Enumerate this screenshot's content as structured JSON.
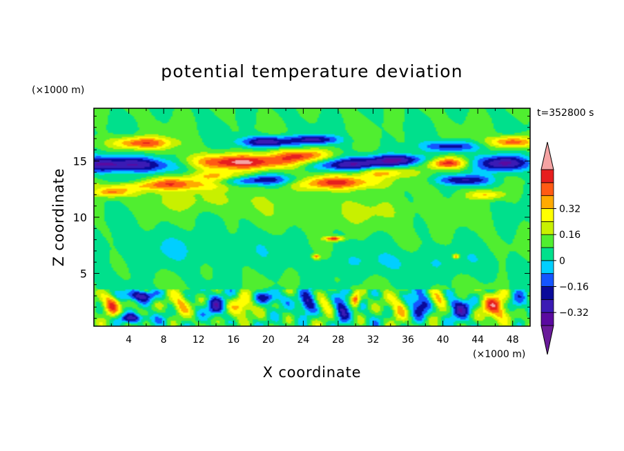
{
  "chart_data": {
    "type": "heatmap",
    "title": "potential temperature deviation",
    "xlabel": "X coordinate",
    "ylabel": "Z coordinate",
    "x_unit": "(×1000 m)",
    "y_unit": "(×1000 m)",
    "time_label": "t=352800 s",
    "xlim": [
      0,
      50
    ],
    "ylim": [
      0.3,
      19.7
    ],
    "x_ticks": [
      4,
      8,
      12,
      16,
      20,
      24,
      28,
      32,
      36,
      40,
      44,
      48
    ],
    "y_ticks": [
      5,
      10,
      15
    ],
    "colorbar": {
      "levels": [
        -0.48,
        -0.4,
        -0.32,
        -0.24,
        -0.16,
        -0.08,
        0,
        0.08,
        0.16,
        0.24,
        0.32,
        0.4,
        0.48
      ],
      "tick_values": [
        -0.32,
        -0.16,
        0,
        0.16,
        0.32
      ],
      "tick_labels": [
        "−0.32",
        "−0.16",
        "0",
        "0.16",
        "0.32"
      ],
      "colors": [
        "#5a0aa0",
        "#3b1bb4",
        "#0a0a9a",
        "#1455ff",
        "#00cfff",
        "#00e08c",
        "#50ee30",
        "#c8f000",
        "#ffff00",
        "#ffaa00",
        "#ff5a14",
        "#e61e1e"
      ],
      "under_color": "#6a1b9a",
      "over_color": "#f5a3a3"
    },
    "features": [
      {
        "x": 3,
        "z": 14.7,
        "sx": 7,
        "sz": 0.7,
        "value": -0.45
      },
      {
        "x": 5.5,
        "z": 16.6,
        "sx": 3.5,
        "sz": 0.55,
        "value": 0.4
      },
      {
        "x": 4,
        "z": 13.2,
        "sx": 3,
        "sz": 0.45,
        "value": -0.32
      },
      {
        "x": 8,
        "z": 13.0,
        "sx": 7,
        "sz": 0.6,
        "value": 0.45
      },
      {
        "x": 2,
        "z": 12.2,
        "sx": 2,
        "sz": 0.4,
        "value": 0.3
      },
      {
        "x": 17,
        "z": 14.9,
        "sx": 7,
        "sz": 0.7,
        "value": 0.5
      },
      {
        "x": 14.5,
        "z": 13.6,
        "sx": 3.5,
        "sz": 0.45,
        "value": 0.3
      },
      {
        "x": 18,
        "z": 13.3,
        "sx": 6.5,
        "sz": 0.5,
        "value": -0.36
      },
      {
        "x": 20,
        "z": 16.7,
        "sx": 3.2,
        "sz": 0.5,
        "value": -0.4
      },
      {
        "x": 25.5,
        "z": 16.9,
        "sx": 2.5,
        "sz": 0.4,
        "value": -0.32
      },
      {
        "x": 24,
        "z": 15.5,
        "sx": 3,
        "sz": 0.6,
        "value": 0.35
      },
      {
        "x": 29,
        "z": 14.7,
        "sx": 5,
        "sz": 0.6,
        "value": -0.4
      },
      {
        "x": 27.5,
        "z": 13.1,
        "sx": 5,
        "sz": 0.6,
        "value": 0.45
      },
      {
        "x": 33,
        "z": 14.0,
        "sx": 3,
        "sz": 0.5,
        "value": 0.3
      },
      {
        "x": 35,
        "z": 15.1,
        "sx": 3.2,
        "sz": 0.5,
        "value": -0.36
      },
      {
        "x": 40.5,
        "z": 14.8,
        "sx": 2.2,
        "sz": 0.5,
        "value": 0.45
      },
      {
        "x": 41,
        "z": 16.3,
        "sx": 3,
        "sz": 0.45,
        "value": -0.3
      },
      {
        "x": 42.5,
        "z": 13.3,
        "sx": 3,
        "sz": 0.45,
        "value": -0.32
      },
      {
        "x": 47,
        "z": 14.8,
        "sx": 3,
        "sz": 0.7,
        "value": -0.45
      },
      {
        "x": 48,
        "z": 16.7,
        "sx": 2.5,
        "sz": 0.5,
        "value": 0.4
      },
      {
        "x": 45,
        "z": 12.0,
        "sx": 2,
        "sz": 0.4,
        "value": 0.25
      },
      {
        "x": 12,
        "z": 11.5,
        "sx": 8,
        "sz": 1.0,
        "value": 0.1
      },
      {
        "x": 30,
        "z": 10.5,
        "sx": 10,
        "sz": 1.5,
        "value": 0.08
      },
      {
        "x": 10,
        "z": 7.2,
        "sx": 12,
        "sz": 1.5,
        "value": -0.07
      },
      {
        "x": 36,
        "z": 6.0,
        "sx": 10,
        "sz": 1.2,
        "value": -0.08
      },
      {
        "x": 27.5,
        "z": 8.1,
        "sx": 1.0,
        "sz": 0.2,
        "value": 0.45
      },
      {
        "x": 25.5,
        "z": 6.5,
        "sx": 0.4,
        "sz": 0.2,
        "value": 0.35
      },
      {
        "x": 41.5,
        "z": 6.5,
        "sx": 0.4,
        "sz": 0.2,
        "value": 0.35
      },
      {
        "x": 2,
        "z": 2.3,
        "sx": 1.0,
        "sz": 0.9,
        "value": 0.45
      },
      {
        "x": 5,
        "z": 3.0,
        "sx": 2,
        "sz": 0.5,
        "value": -0.35
      },
      {
        "x": 4.5,
        "z": 1.0,
        "sx": 2,
        "sz": 0.4,
        "value": -0.3
      },
      {
        "x": 10,
        "z": 2.2,
        "sx": 1,
        "sz": 0.9,
        "value": 0.25
      },
      {
        "x": 14,
        "z": 2.0,
        "sx": 1,
        "sz": 1.0,
        "value": -0.3
      },
      {
        "x": 17,
        "z": 2.0,
        "sx": 1.2,
        "sz": 1.0,
        "value": 0.3
      },
      {
        "x": 20,
        "z": 2.8,
        "sx": 1.5,
        "sz": 0.6,
        "value": -0.3
      },
      {
        "x": 24.5,
        "z": 2.3,
        "sx": 1,
        "sz": 1.0,
        "value": -0.35
      },
      {
        "x": 26.5,
        "z": 2.3,
        "sx": 1,
        "sz": 0.9,
        "value": 0.25
      },
      {
        "x": 28.5,
        "z": 2.0,
        "sx": 0.9,
        "sz": 1.2,
        "value": -0.35
      },
      {
        "x": 30,
        "z": 2.6,
        "sx": 0.5,
        "sz": 0.6,
        "value": 0.4
      },
      {
        "x": 35,
        "z": 2.0,
        "sx": 1,
        "sz": 1.0,
        "value": 0.25
      },
      {
        "x": 37.5,
        "z": 2.2,
        "sx": 1.2,
        "sz": 1.0,
        "value": -0.35
      },
      {
        "x": 39.5,
        "z": 2.6,
        "sx": 1,
        "sz": 0.9,
        "value": 0.3
      },
      {
        "x": 42,
        "z": 2.0,
        "sx": 1.5,
        "sz": 1.0,
        "value": -0.3
      },
      {
        "x": 46,
        "z": 2.0,
        "sx": 1.5,
        "sz": 1.2,
        "value": 0.42
      },
      {
        "x": 48.5,
        "z": 2.3,
        "sx": 1,
        "sz": 0.9,
        "value": -0.2
      }
    ]
  },
  "colors": {
    "background": "#ffffff",
    "axis": "#000000"
  }
}
